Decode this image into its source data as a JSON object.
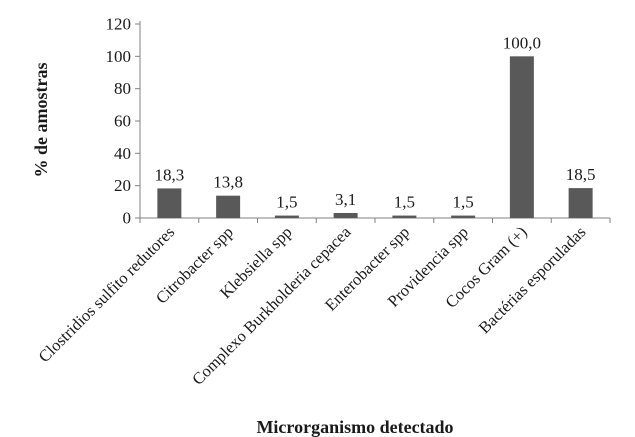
{
  "chart_data": {
    "type": "bar",
    "title": "",
    "xlabel": "Microrganismo detectado",
    "ylabel": "% de amostras",
    "ylim": [
      0,
      120
    ],
    "yticks": [
      0,
      20,
      40,
      60,
      80,
      100,
      120
    ],
    "ytick_labels": [
      "0",
      "20",
      "40",
      "60",
      "80",
      "100",
      "120"
    ],
    "grid": false,
    "legend": "none",
    "categories": [
      "Clostridios sulfito redutores",
      "Citrobacter spp",
      "Klebsiella spp",
      "Complexo Burkholderia cepacea",
      "Enterobacter spp",
      "Providencia spp",
      "Cocos Gram (+)",
      "Bactérias esporuladas"
    ],
    "values": [
      18.3,
      13.8,
      1.5,
      3.1,
      1.5,
      1.5,
      100.0,
      18.5
    ],
    "data_labels": [
      "18,3",
      "13,8",
      "1,5",
      "3,1",
      "1,5",
      "1,5",
      "100,0",
      "18,5"
    ],
    "colors": {
      "bar": "#595959",
      "axis": "#808080",
      "text": "#1a1a1a"
    }
  }
}
